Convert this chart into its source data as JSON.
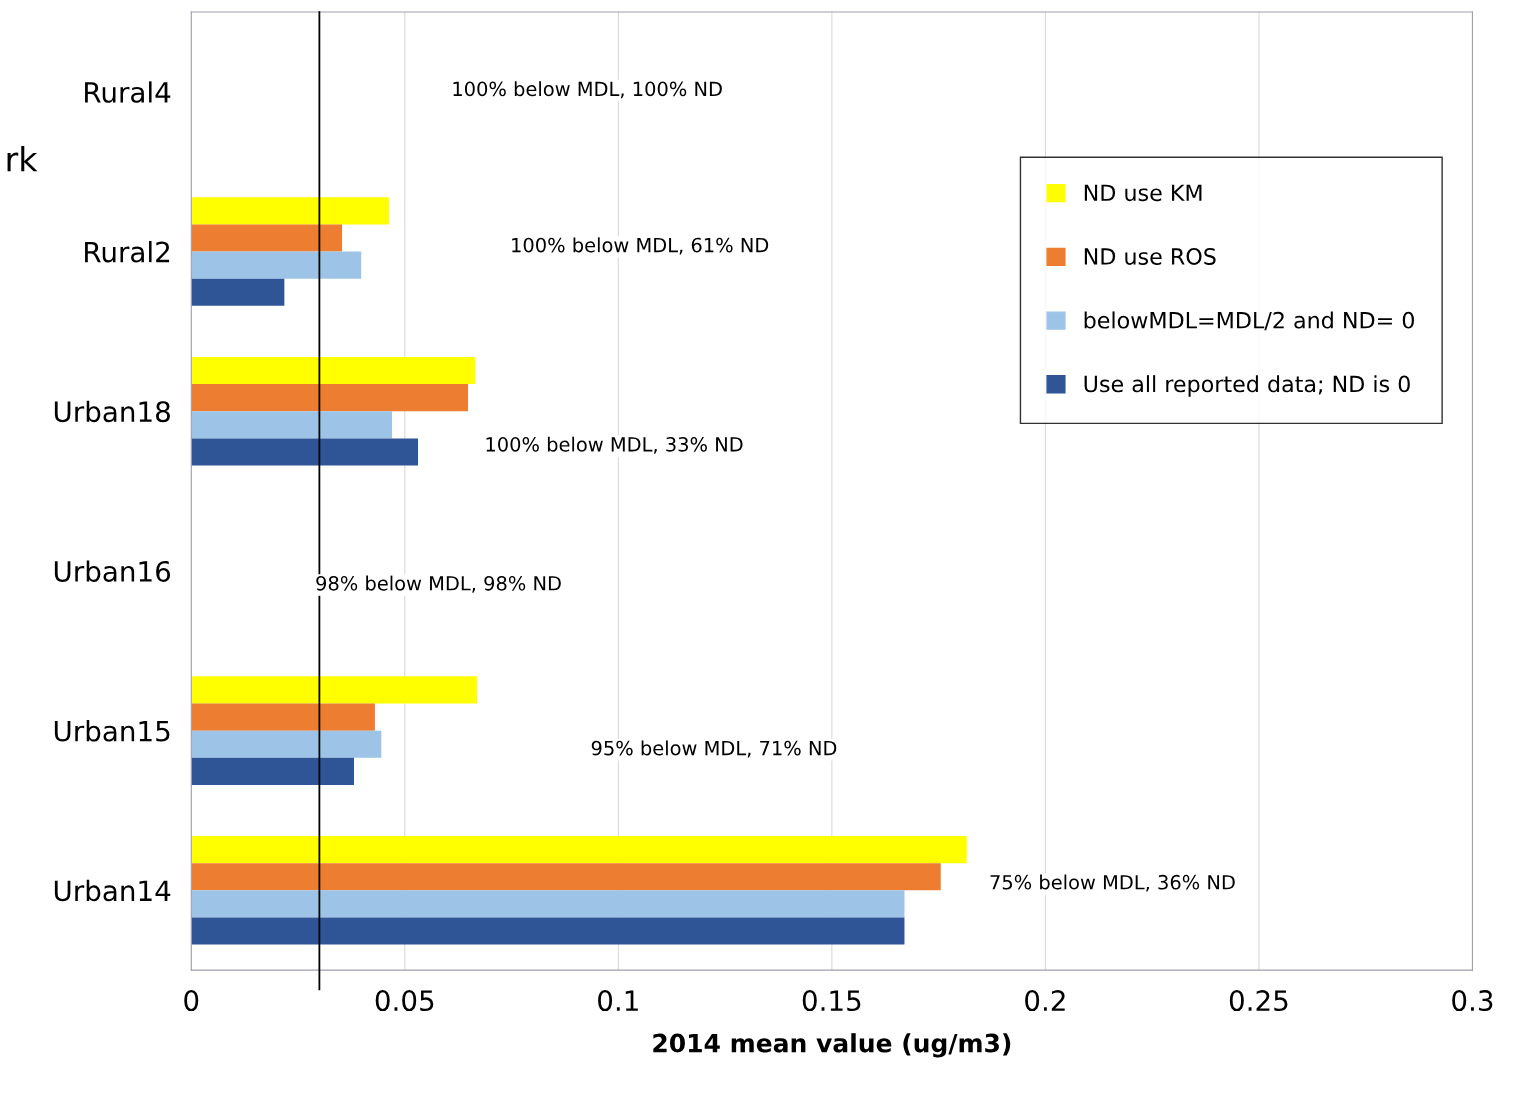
{
  "chart_data": {
    "type": "bar",
    "orientation": "horizontal",
    "xlabel": "2014 mean value (ug/m3)",
    "categories": [
      "Rural4",
      "Rural2",
      "Urban18",
      "Urban16",
      "Urban15",
      "Urban14"
    ],
    "series": [
      {
        "name": "ND use KM",
        "color": "#ffff00",
        "values": [
          null,
          0.0463,
          0.0665,
          null,
          0.0669,
          0.1816
        ]
      },
      {
        "name": "ND use ROS",
        "color": "#ed7d31",
        "values": [
          null,
          0.0353,
          0.0648,
          null,
          0.043,
          0.1755
        ]
      },
      {
        "name": "belowMDL=MDL/2 and ND= 0",
        "color": "#9dc3e6",
        "values": [
          null,
          0.0398,
          0.047,
          null,
          0.0445,
          0.167
        ]
      },
      {
        "name": "Use all reported data; ND is 0",
        "color": "#2f5597",
        "values": [
          null,
          0.0218,
          0.0531,
          null,
          0.0381,
          0.167
        ]
      }
    ],
    "xlim": [
      0,
      0.3
    ],
    "xticks": [
      0,
      0.05,
      0.1,
      0.15,
      0.2,
      0.25,
      0.3
    ],
    "ref_lines": [
      {
        "axis": "x",
        "value": 0.03,
        "color": "#000000"
      }
    ],
    "annotations": [
      "100% below MDL, 100% ND",
      "100% below MDL, 61% ND",
      "100% below MDL, 33% ND",
      "98% below MDL, 98% ND",
      "95% below MDL, 71% ND",
      "75% below MDL, 36% ND",
      "rk"
    ],
    "grid": "x",
    "legend": "top right"
  }
}
